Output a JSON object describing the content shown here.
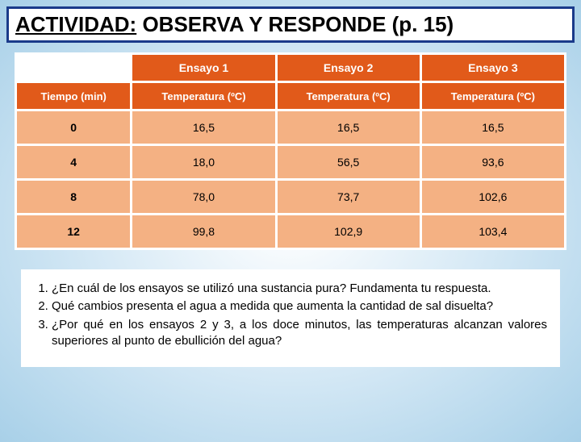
{
  "title": {
    "label_underlined": "ACTIVIDAD:",
    "label_rest": " OBSERVA Y RESPONDE  (p. 15)"
  },
  "table": {
    "top_headers": [
      "Ensayo 1",
      "Ensayo 2",
      "Ensayo 3"
    ],
    "sub_left": "Tiempo (min)",
    "sub_headers": [
      "Temperatura (ºC)",
      "Temperatura (ºC)",
      "Temperatura (ºC)"
    ],
    "rows": [
      {
        "time": "0",
        "v1": "16,5",
        "v2": "16,5",
        "v3": "16,5"
      },
      {
        "time": "4",
        "v1": "18,0",
        "v2": "56,5",
        "v3": "93,6"
      },
      {
        "time": "8",
        "v1": "78,0",
        "v2": "73,7",
        "v3": "102,6"
      },
      {
        "time": "12",
        "v1": "99,8",
        "v2": "102,9",
        "v3": "103,4"
      }
    ],
    "colors": {
      "header_bg": "#e15a1a",
      "header_fg": "#ffffff",
      "cell_bg": "#f4b183",
      "cell_fg": "#000000",
      "spacing_bg": "#ffffff"
    }
  },
  "questions": {
    "items": [
      "¿En cuál de los ensayos se utilizó una sustancia pura? Fundamenta tu respuesta.",
      "Qué cambios presenta el agua a medida que aumenta la cantidad de sal disuelta?",
      "¿Por qué en los ensayos 2 y 3, a los doce minutos, las temperaturas alcanzan valores superiores al punto de ebullición del agua?"
    ]
  }
}
